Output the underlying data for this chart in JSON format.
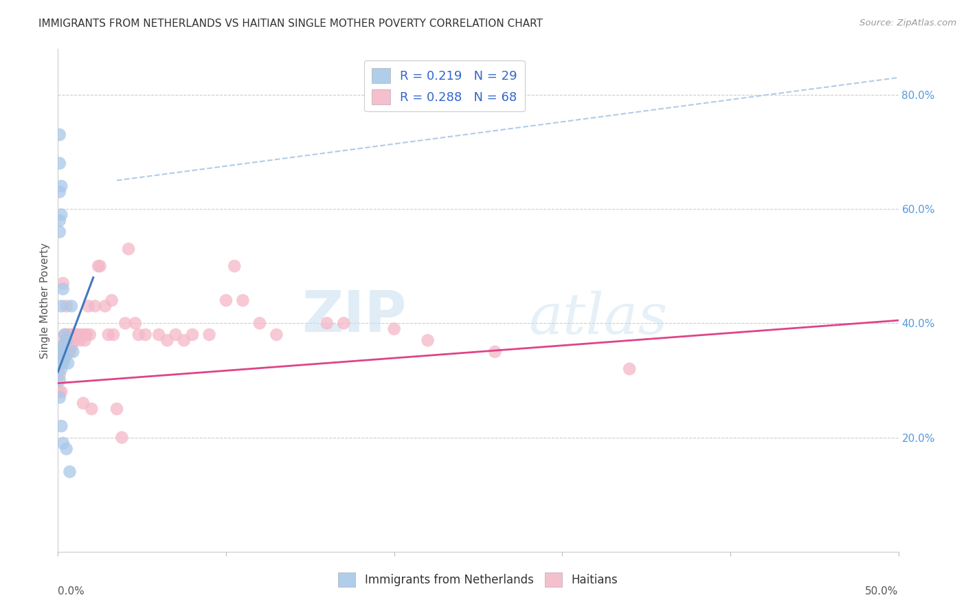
{
  "title": "IMMIGRANTS FROM NETHERLANDS VS HAITIAN SINGLE MOTHER POVERTY CORRELATION CHART",
  "source": "Source: ZipAtlas.com",
  "ylabel": "Single Mother Poverty",
  "legend1_label": "R = 0.219   N = 29",
  "legend2_label": "R = 0.288   N = 68",
  "bottom_legend1": "Immigrants from Netherlands",
  "bottom_legend2": "Haitians",
  "watermark_zip": "ZIP",
  "watermark_atlas": "atlas",
  "blue_color": "#a8c8e8",
  "pink_color": "#f4b8c8",
  "blue_line_color": "#4477bb",
  "pink_line_color": "#dd4488",
  "dash_color": "#b0cce8",
  "blue_scatter_x": [
    0.001,
    0.001,
    0.001,
    0.001,
    0.001,
    0.002,
    0.002,
    0.002,
    0.002,
    0.003,
    0.003,
    0.003,
    0.003,
    0.004,
    0.004,
    0.005,
    0.006,
    0.007,
    0.008,
    0.009,
    0.001,
    0.001,
    0.001,
    0.002,
    0.002,
    0.003,
    0.003,
    0.004,
    0.005
  ],
  "blue_scatter_y": [
    0.73,
    0.68,
    0.63,
    0.58,
    0.56,
    0.64,
    0.59,
    0.43,
    0.22,
    0.46,
    0.36,
    0.34,
    0.19,
    0.38,
    0.34,
    0.37,
    0.33,
    0.14,
    0.43,
    0.35,
    0.33,
    0.3,
    0.27,
    0.35,
    0.32,
    0.35,
    0.33,
    0.34,
    0.18
  ],
  "pink_scatter_x": [
    0.001,
    0.001,
    0.001,
    0.001,
    0.001,
    0.002,
    0.002,
    0.002,
    0.003,
    0.003,
    0.003,
    0.004,
    0.004,
    0.004,
    0.005,
    0.005,
    0.006,
    0.006,
    0.006,
    0.007,
    0.007,
    0.008,
    0.008,
    0.009,
    0.01,
    0.01,
    0.011,
    0.012,
    0.013,
    0.014,
    0.015,
    0.016,
    0.016,
    0.017,
    0.018,
    0.019,
    0.02,
    0.022,
    0.024,
    0.025,
    0.028,
    0.03,
    0.032,
    0.033,
    0.035,
    0.038,
    0.04,
    0.042,
    0.046,
    0.048,
    0.052,
    0.06,
    0.065,
    0.07,
    0.075,
    0.08,
    0.09,
    0.1,
    0.105,
    0.11,
    0.12,
    0.13,
    0.16,
    0.17,
    0.2,
    0.22,
    0.26,
    0.34
  ],
  "pink_scatter_y": [
    0.35,
    0.34,
    0.33,
    0.31,
    0.28,
    0.36,
    0.34,
    0.28,
    0.47,
    0.36,
    0.33,
    0.38,
    0.37,
    0.35,
    0.43,
    0.37,
    0.38,
    0.37,
    0.35,
    0.38,
    0.35,
    0.38,
    0.36,
    0.37,
    0.38,
    0.37,
    0.38,
    0.38,
    0.37,
    0.38,
    0.26,
    0.38,
    0.37,
    0.38,
    0.43,
    0.38,
    0.25,
    0.43,
    0.5,
    0.5,
    0.43,
    0.38,
    0.44,
    0.38,
    0.25,
    0.2,
    0.4,
    0.53,
    0.4,
    0.38,
    0.38,
    0.38,
    0.37,
    0.38,
    0.37,
    0.38,
    0.38,
    0.44,
    0.5,
    0.44,
    0.4,
    0.38,
    0.4,
    0.4,
    0.39,
    0.37,
    0.35,
    0.32
  ],
  "blue_trend_x": [
    0.0,
    0.021
  ],
  "blue_trend_y": [
    0.315,
    0.48
  ],
  "pink_trend_x": [
    0.0,
    0.5
  ],
  "pink_trend_y": [
    0.295,
    0.405
  ],
  "dash_trend_x": [
    0.035,
    0.5
  ],
  "dash_trend_y": [
    0.65,
    0.83
  ],
  "xlim": [
    0.0,
    0.5
  ],
  "ylim": [
    0.0,
    0.88
  ],
  "ytick_vals": [
    0.2,
    0.4,
    0.6,
    0.8
  ],
  "ytick_labels": [
    "20.0%",
    "40.0%",
    "60.0%",
    "80.0%"
  ]
}
